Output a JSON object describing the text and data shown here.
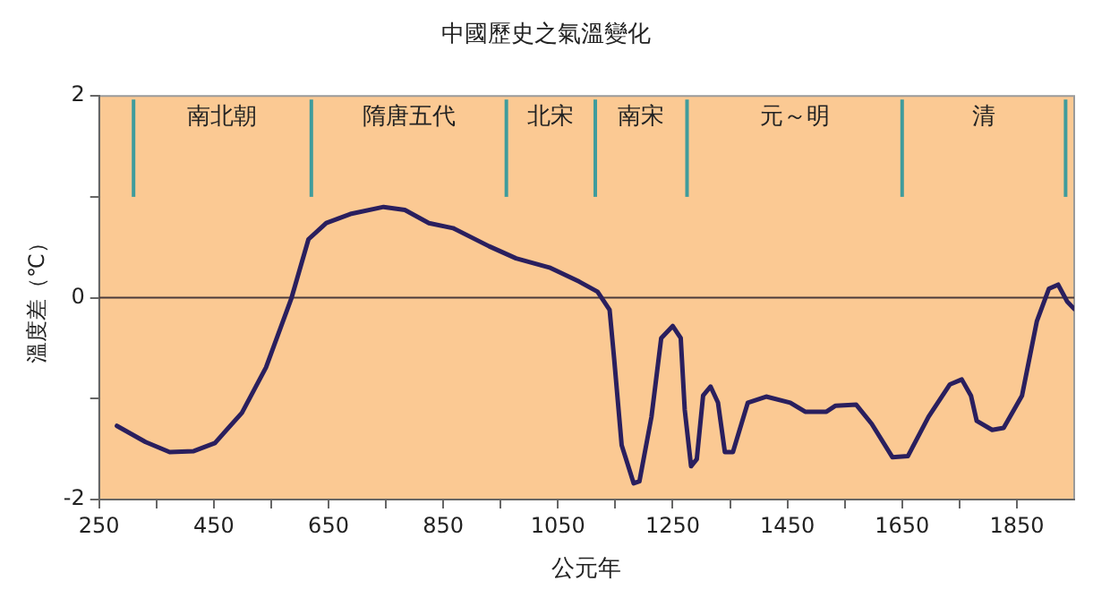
{
  "chart_data": {
    "type": "line",
    "title": "中國歷史之氣溫變化",
    "xlabel": "公元年",
    "ylabel": "溫度差（℃）",
    "x": [
      281,
      331,
      373,
      415,
      452,
      499,
      541,
      585,
      615,
      646,
      688,
      746,
      783,
      825,
      867,
      930,
      977,
      1035,
      1087,
      1119,
      1140,
      1148,
      1161,
      1182,
      1192,
      1213,
      1230,
      1250,
      1264,
      1271,
      1282,
      1292,
      1303,
      1316,
      1329,
      1341,
      1355,
      1381,
      1413,
      1455,
      1481,
      1518,
      1534,
      1570,
      1597,
      1633,
      1660,
      1696,
      1733,
      1754,
      1770,
      1780,
      1807,
      1827,
      1859,
      1885,
      1906,
      1922,
      1938,
      1950
    ],
    "series": [
      {
        "color": "#2a1f5e",
        "values": [
          -1.27,
          -1.43,
          -1.53,
          -1.52,
          -1.44,
          -1.14,
          -0.69,
          -0.01,
          0.58,
          0.74,
          0.83,
          0.9,
          0.87,
          0.74,
          0.69,
          0.51,
          0.39,
          0.3,
          0.16,
          0.06,
          -0.12,
          -0.61,
          -1.46,
          -1.84,
          -1.82,
          -1.18,
          -0.4,
          -0.28,
          -0.4,
          -1.11,
          -1.67,
          -1.6,
          -0.97,
          -0.88,
          -1.04,
          -1.53,
          -1.53,
          -1.04,
          -0.98,
          -1.04,
          -1.13,
          -1.13,
          -1.07,
          -1.06,
          -1.25,
          -1.58,
          -1.57,
          -1.18,
          -0.86,
          -0.81,
          -0.97,
          -1.22,
          -1.31,
          -1.29,
          -0.97,
          -0.23,
          0.09,
          0.13,
          -0.04,
          -0.11
        ]
      }
    ],
    "xlim": [
      250,
      1950
    ],
    "xticks": [
      250,
      {
        "value": 350,
        "label": null
      },
      450,
      {
        "value": 550,
        "label": null
      },
      650,
      {
        "value": 750,
        "label": null
      },
      850,
      {
        "value": 950,
        "label": null
      },
      1050,
      {
        "value": 1150,
        "label": null
      },
      1250,
      {
        "value": 1350,
        "label": null
      },
      1450,
      {
        "value": 1550,
        "label": null
      },
      1650,
      {
        "value": 1750,
        "label": null
      },
      1850
    ],
    "ylim": [
      -2,
      2
    ],
    "yticks": [
      -2,
      {
        "value": -1,
        "label": null
      },
      0,
      {
        "value": 1,
        "label": null
      },
      2
    ],
    "ref_lines": [
      {
        "axis": "y",
        "value": 0,
        "color": "#4a3a3a"
      },
      {
        "axis": "x",
        "value": 310,
        "color": "#3f9c9c"
      },
      {
        "axis": "x",
        "value": 620,
        "color": "#3f9c9c"
      },
      {
        "axis": "x",
        "value": 960,
        "color": "#3f9c9c"
      },
      {
        "axis": "x",
        "value": 1115,
        "color": "#3f9c9c"
      },
      {
        "axis": "x",
        "value": 1275,
        "color": "#3f9c9c"
      },
      {
        "axis": "x",
        "value": 1650,
        "color": "#3f9c9c"
      },
      {
        "axis": "x",
        "value": 1935,
        "color": "#3f9c9c"
      }
    ],
    "annotations": [
      "南北朝",
      "隋唐五代",
      "北宋",
      "南宋",
      "元～明",
      "清"
    ],
    "grid": false,
    "legend": false,
    "marker": "none",
    "line_style": "solid"
  }
}
